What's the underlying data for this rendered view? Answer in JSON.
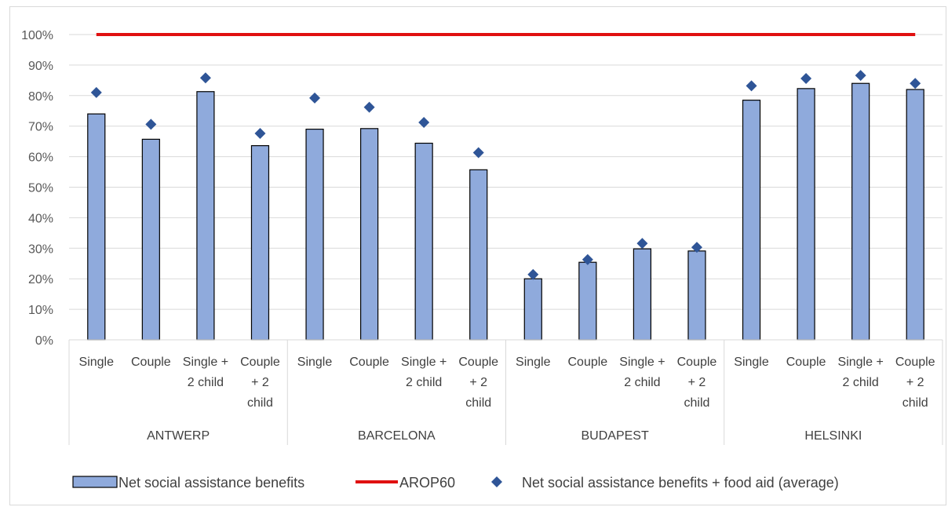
{
  "chart_data": {
    "type": "bar",
    "title": "",
    "xlabel": "",
    "ylabel": "",
    "ylim": [
      0,
      100
    ],
    "yticks": [
      "0%",
      "10%",
      "20%",
      "30%",
      "40%",
      "50%",
      "60%",
      "70%",
      "80%",
      "90%",
      "100%"
    ],
    "grid": true,
    "legend_position": "bottom",
    "groups": [
      "ANTWERP",
      "BARCELONA",
      "BUDAPEST",
      "HELSINKI"
    ],
    "categories": [
      [
        "Single"
      ],
      [
        "Couple"
      ],
      [
        "Single +",
        "2 child"
      ],
      [
        "Couple",
        "+ 2",
        "child"
      ],
      [
        "Single"
      ],
      [
        "Couple"
      ],
      [
        "Single +",
        "2 child"
      ],
      [
        "Couple",
        "+ 2",
        "child"
      ],
      [
        "Single"
      ],
      [
        "Couple"
      ],
      [
        "Single +",
        "2 child"
      ],
      [
        "Couple",
        "+ 2",
        "child"
      ],
      [
        "Single"
      ],
      [
        "Couple"
      ],
      [
        "Single +",
        "2 child"
      ],
      [
        "Couple",
        "+ 2",
        "child"
      ]
    ],
    "series": [
      {
        "name": "Net social assistance benefits",
        "kind": "bar",
        "color": "#8faadc",
        "values": [
          74,
          65.7,
          81.3,
          63.6,
          69,
          69.2,
          64.4,
          55.7,
          20,
          25.4,
          29.8,
          29.1,
          78.5,
          82.3,
          84,
          82
        ]
      },
      {
        "name": "AROP60",
        "kind": "line",
        "color": "#e01010",
        "values": [
          100,
          100,
          100,
          100,
          100,
          100,
          100,
          100,
          100,
          100,
          100,
          100,
          100,
          100,
          100,
          100
        ]
      },
      {
        "name": "Net social assistance benefits + food aid (average)",
        "kind": "marker",
        "color": "#2f5597",
        "values": [
          81,
          70.6,
          85.8,
          67.6,
          79.2,
          76.2,
          71.2,
          61.3,
          21.4,
          26.3,
          31.6,
          30.3,
          83.2,
          85.6,
          86.6,
          84
        ]
      }
    ]
  }
}
